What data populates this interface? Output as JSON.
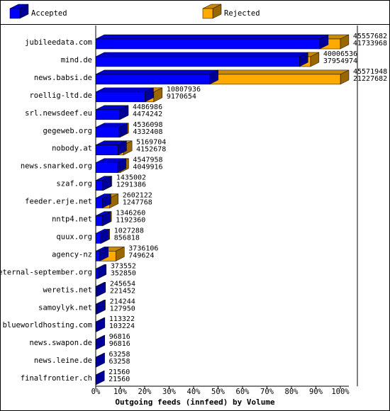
{
  "chart_data": {
    "type": "bar3d",
    "title": "Outgoing feeds (innfeed) by Volume",
    "categories": [
      "jubileedata.com",
      "mind.de",
      "news.babsi.de",
      "roellig-ltd.de",
      "srl.newsdeef.eu",
      "gegeweb.org",
      "nobody.at",
      "news.snarked.org",
      "szaf.org",
      "feeder.erje.net",
      "nntp4.net",
      "quux.org",
      "agency-nz",
      "eternal-september.org",
      "weretis.net",
      "samoylyk.net",
      "blueworldhosting.com",
      "news.swapon.de",
      "news.leine.de",
      "finalfrontier.ch"
    ],
    "offered": [
      45557682,
      40006536,
      45571948,
      10807936,
      4486986,
      4536098,
      5169704,
      4547958,
      1435002,
      2602122,
      1346260,
      1027288,
      3736106,
      373552,
      245654,
      214244,
      113322,
      96816,
      63258,
      21560
    ],
    "series": [
      {
        "name": "Accepted",
        "color": "#0000ff",
        "values": [
          41733968,
          37954974,
          21227682,
          9170654,
          4474242,
          4332408,
          4152678,
          4049916,
          1291386,
          1247768,
          1192360,
          856818,
          749624,
          352850,
          221452,
          127950,
          103224,
          96816,
          63258,
          21560
        ]
      },
      {
        "name": "Rejected",
        "color": "#ffaa00"
      }
    ],
    "xlim": [
      0,
      45571948
    ],
    "xticks": [
      {
        "value": 0,
        "label": "0%"
      },
      {
        "value": 4557194.8,
        "label": "10%"
      },
      {
        "value": 9114389.6,
        "label": "20%"
      },
      {
        "value": 13671584.4,
        "label": "30%"
      },
      {
        "value": 18228779.2,
        "label": "40%"
      },
      {
        "value": 22785974,
        "label": "50%"
      },
      {
        "value": 27343168.8,
        "label": "60%"
      },
      {
        "value": 31900363.6,
        "label": "70%"
      },
      {
        "value": 36457558.4,
        "label": "80%"
      },
      {
        "value": 41014753.2,
        "label": "90%"
      },
      {
        "value": 45571948,
        "label": "100%"
      }
    ]
  }
}
